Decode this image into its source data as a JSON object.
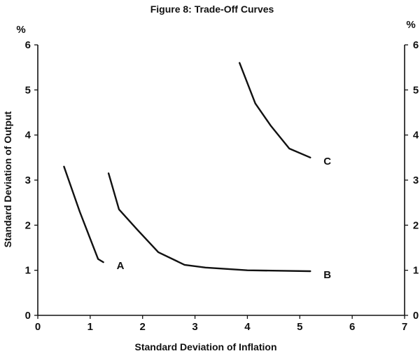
{
  "chart_data": {
    "type": "line",
    "title": "Figure 8: Trade-Off Curves",
    "xlabel": "Standard Deviation of Inflation",
    "ylabel": "Standard Deviation of Output",
    "y_unit_left": "%",
    "y_unit_right": "%",
    "xlim": [
      0,
      7
    ],
    "ylim": [
      0,
      6
    ],
    "x_ticks": [
      "0",
      "1",
      "2",
      "3",
      "4",
      "5",
      "6",
      "7"
    ],
    "y_ticks": [
      "0",
      "1",
      "2",
      "3",
      "4",
      "5",
      "6"
    ],
    "y_ticks_right": [
      "0",
      "1",
      "2",
      "3",
      "4",
      "5",
      "6"
    ],
    "grid": false,
    "series": [
      {
        "name": "A",
        "x": [
          0.5,
          0.8,
          1.15,
          1.25
        ],
        "y": [
          3.3,
          2.3,
          1.25,
          1.18
        ]
      },
      {
        "name": "B",
        "x": [
          1.35,
          1.55,
          1.9,
          2.3,
          2.8,
          3.2,
          4.0,
          5.2
        ],
        "y": [
          3.15,
          2.35,
          1.9,
          1.4,
          1.12,
          1.06,
          1.0,
          0.98
        ]
      },
      {
        "name": "C",
        "x": [
          3.85,
          4.15,
          4.45,
          4.8,
          5.2
        ],
        "y": [
          5.6,
          4.7,
          4.2,
          3.7,
          3.5
        ]
      }
    ]
  }
}
